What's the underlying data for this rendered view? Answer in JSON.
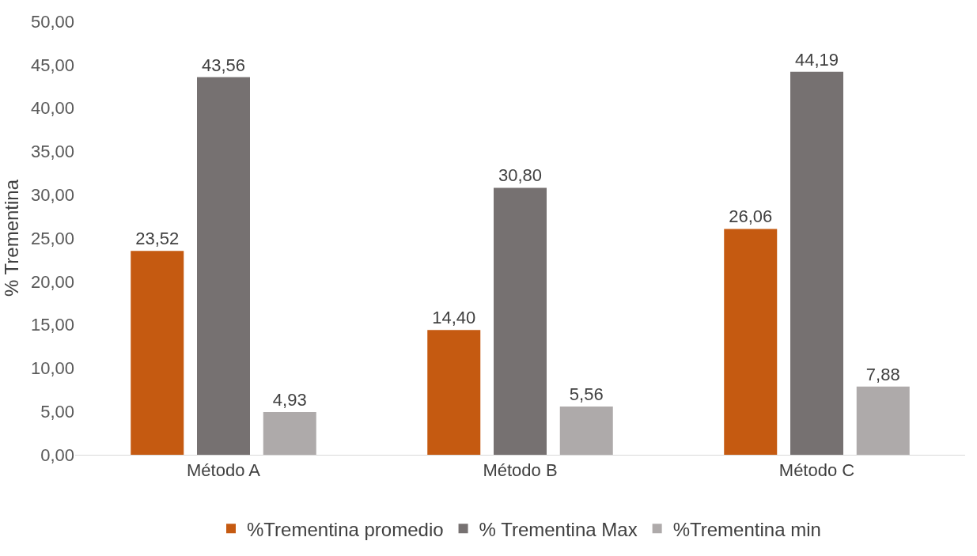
{
  "chart_data": {
    "type": "bar",
    "ylabel": "% Trementina",
    "categories": [
      "Método A",
      "Método B",
      "Método C"
    ],
    "series": [
      {
        "name": "%Trementina promedio",
        "color": "#c55a11",
        "values": [
          23.52,
          14.4,
          26.06
        ],
        "value_labels": [
          "23,52",
          "14,40",
          "26,06"
        ]
      },
      {
        "name": "% Trementina Max",
        "color": "#767171",
        "values": [
          43.56,
          30.8,
          44.19
        ],
        "value_labels": [
          "43,56",
          "30,80",
          "44,19"
        ]
      },
      {
        "name": "%Trementina min",
        "color": "#aeaaaa",
        "values": [
          4.93,
          5.56,
          7.88
        ],
        "value_labels": [
          "4,93",
          "5,56",
          "7,88"
        ]
      }
    ],
    "ylim": [
      0,
      50
    ],
    "yticks": [
      {
        "value": 0,
        "label": "0,00"
      },
      {
        "value": 5,
        "label": "5,00"
      },
      {
        "value": 10,
        "label": "10,00"
      },
      {
        "value": 15,
        "label": "15,00"
      },
      {
        "value": 20,
        "label": "20,00"
      },
      {
        "value": 25,
        "label": "25,00"
      },
      {
        "value": 30,
        "label": "30,00"
      },
      {
        "value": 35,
        "label": "35,00"
      },
      {
        "value": 40,
        "label": "40,00"
      },
      {
        "value": 45,
        "label": "45,00"
      },
      {
        "value": 50,
        "label": "50,00"
      }
    ],
    "grid": false,
    "legend": "bottom"
  }
}
